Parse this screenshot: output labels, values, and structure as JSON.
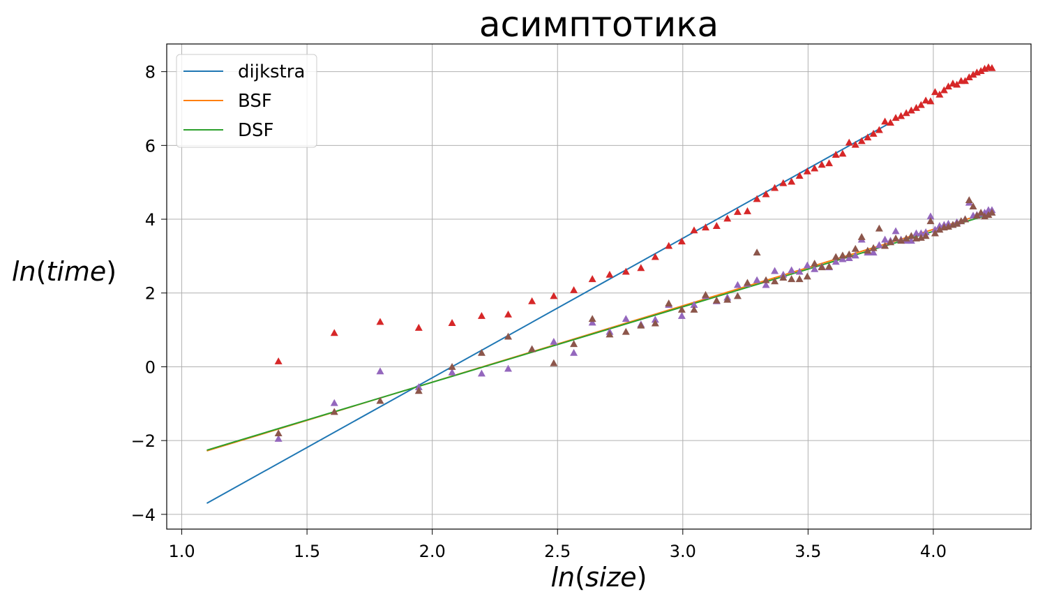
{
  "chart_data": {
    "type": "scatter",
    "title": "асимптотика",
    "xlabel": "ln(size)",
    "ylabel": "ln(time)",
    "xlim": [
      0.94,
      4.39
    ],
    "ylim": [
      -4.4,
      8.75
    ],
    "xticks": [
      1.0,
      1.5,
      2.0,
      2.5,
      3.0,
      3.5,
      4.0
    ],
    "xtick_labels": [
      "1.0",
      "1.5",
      "2.0",
      "2.5",
      "3.0",
      "3.5",
      "4.0"
    ],
    "yticks": [
      -4,
      -2,
      0,
      2,
      4,
      6,
      8
    ],
    "ytick_labels": [
      "−4",
      "−2",
      "0",
      "2",
      "4",
      "6",
      "8"
    ],
    "grid": true,
    "legend_position": "top-left",
    "fit_lines": [
      {
        "name": "dijkstra",
        "color": "#1f77b4",
        "x": [
          1.1,
          3.83
        ],
        "y": [
          -3.7,
          6.62
        ]
      },
      {
        "name": "BSF",
        "color": "#ff7f0e",
        "x": [
          1.1,
          4.23
        ],
        "y": [
          -2.28,
          4.2
        ]
      },
      {
        "name": "DSF",
        "color": "#2ca02c",
        "x": [
          1.1,
          4.23
        ],
        "y": [
          -2.26,
          4.14
        ]
      }
    ],
    "scatter_series": [
      {
        "label": "dijkstra measured",
        "color": "#d62728",
        "x": [
          1.386,
          1.609,
          1.792,
          1.946,
          2.079,
          2.197,
          2.303,
          2.398,
          2.485,
          2.565,
          2.639,
          2.708,
          2.773,
          2.833,
          2.89,
          2.944,
          2.996,
          3.045,
          3.091,
          3.135,
          3.178,
          3.219,
          3.258,
          3.296,
          3.332,
          3.367,
          3.401,
          3.434,
          3.466,
          3.497,
          3.526,
          3.555,
          3.584,
          3.611,
          3.638,
          3.664,
          3.689,
          3.714,
          3.738,
          3.761,
          3.784,
          3.807,
          3.829,
          3.85,
          3.871,
          3.892,
          3.912,
          3.932,
          3.951,
          3.97,
          3.989,
          4.007,
          4.025,
          4.043,
          4.06,
          4.078,
          4.094,
          4.111,
          4.127,
          4.143,
          4.159,
          4.174,
          4.19,
          4.205,
          4.22,
          4.234
        ],
        "y": [
          0.15,
          0.92,
          1.22,
          1.06,
          1.19,
          1.38,
          1.42,
          1.78,
          1.92,
          2.08,
          2.38,
          2.5,
          2.58,
          2.68,
          2.98,
          3.28,
          3.4,
          3.7,
          3.78,
          3.82,
          4.02,
          4.2,
          4.22,
          4.55,
          4.68,
          4.85,
          4.98,
          5.02,
          5.18,
          5.3,
          5.38,
          5.48,
          5.52,
          5.75,
          5.78,
          6.08,
          6.02,
          6.12,
          6.22,
          6.32,
          6.42,
          6.65,
          6.62,
          6.75,
          6.8,
          6.88,
          6.95,
          7.02,
          7.1,
          7.22,
          7.2,
          7.45,
          7.38,
          7.5,
          7.6,
          7.68,
          7.65,
          7.75,
          7.75,
          7.85,
          7.92,
          7.98,
          8.02,
          8.08,
          8.12,
          8.1
        ]
      },
      {
        "label": "BSF measured",
        "color": "#9467bd",
        "x": [
          1.386,
          1.609,
          1.792,
          1.946,
          2.079,
          2.197,
          2.303,
          2.398,
          2.485,
          2.565,
          2.639,
          2.708,
          2.773,
          2.833,
          2.89,
          2.944,
          2.996,
          3.045,
          3.091,
          3.135,
          3.178,
          3.219,
          3.258,
          3.296,
          3.332,
          3.367,
          3.401,
          3.434,
          3.466,
          3.497,
          3.526,
          3.555,
          3.584,
          3.611,
          3.638,
          3.664,
          3.689,
          3.714,
          3.738,
          3.761,
          3.784,
          3.807,
          3.829,
          3.85,
          3.871,
          3.892,
          3.912,
          3.932,
          3.951,
          3.97,
          3.989,
          4.007,
          4.025,
          4.043,
          4.06,
          4.078,
          4.094,
          4.111,
          4.127,
          4.143,
          4.159,
          4.174,
          4.19,
          4.205,
          4.22,
          4.234
        ],
        "y": [
          -1.95,
          -0.98,
          -0.12,
          -0.55,
          -0.15,
          -0.18,
          -0.05,
          0.48,
          0.68,
          0.38,
          1.2,
          0.95,
          1.3,
          1.15,
          1.28,
          1.68,
          1.38,
          1.68,
          1.92,
          1.78,
          1.88,
          2.22,
          2.25,
          2.35,
          2.22,
          2.6,
          2.5,
          2.62,
          2.58,
          2.75,
          2.65,
          2.72,
          2.7,
          2.85,
          2.92,
          2.95,
          3.02,
          3.45,
          3.1,
          3.1,
          3.3,
          3.45,
          3.42,
          3.68,
          3.45,
          3.42,
          3.42,
          3.62,
          3.62,
          3.65,
          4.08,
          3.72,
          3.82,
          3.85,
          3.88,
          3.85,
          3.92,
          3.95,
          4.0,
          4.45,
          4.1,
          4.12,
          4.15,
          4.18,
          4.25,
          4.25
        ]
      },
      {
        "label": "DSF measured",
        "color": "#8c564b",
        "x": [
          1.386,
          1.609,
          1.792,
          1.946,
          2.079,
          2.197,
          2.303,
          2.398,
          2.485,
          2.565,
          2.639,
          2.708,
          2.773,
          2.833,
          2.89,
          2.944,
          2.996,
          3.045,
          3.091,
          3.135,
          3.178,
          3.219,
          3.258,
          3.296,
          3.332,
          3.367,
          3.401,
          3.434,
          3.466,
          3.497,
          3.526,
          3.555,
          3.584,
          3.611,
          3.638,
          3.664,
          3.689,
          3.714,
          3.738,
          3.761,
          3.784,
          3.807,
          3.829,
          3.85,
          3.871,
          3.892,
          3.912,
          3.932,
          3.951,
          3.97,
          3.989,
          4.007,
          4.025,
          4.043,
          4.06,
          4.078,
          4.094,
          4.111,
          4.127,
          4.143,
          4.159,
          4.174,
          4.19,
          4.205,
          4.22,
          4.234
        ],
        "y": [
          -1.8,
          -1.22,
          -0.92,
          -0.65,
          0.0,
          0.38,
          0.82,
          0.48,
          0.1,
          0.62,
          1.3,
          0.88,
          0.95,
          1.12,
          1.18,
          1.72,
          1.55,
          1.55,
          1.95,
          1.8,
          1.82,
          1.92,
          2.28,
          3.1,
          2.35,
          2.32,
          2.42,
          2.38,
          2.38,
          2.45,
          2.8,
          2.7,
          2.72,
          2.98,
          3.02,
          3.05,
          3.2,
          3.52,
          3.15,
          3.22,
          3.75,
          3.28,
          3.38,
          3.48,
          3.42,
          3.48,
          3.55,
          3.48,
          3.5,
          3.55,
          3.95,
          3.62,
          3.72,
          3.78,
          3.8,
          3.85,
          3.88,
          3.95,
          4.0,
          4.52,
          4.35,
          4.1,
          4.18,
          4.08,
          4.12,
          4.18
        ]
      }
    ]
  }
}
